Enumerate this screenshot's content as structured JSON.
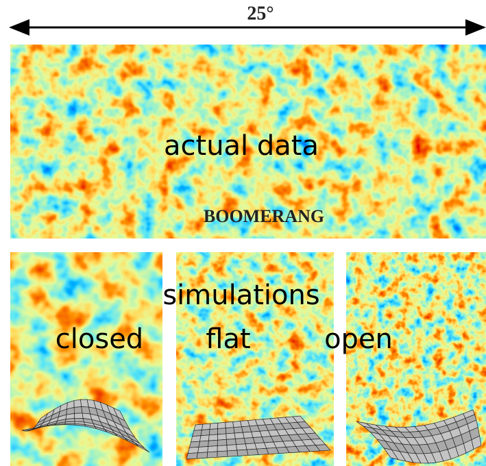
{
  "top_label": "25°",
  "top_panel": {
    "label": "actual data",
    "experiment": "BOOMERANG"
  },
  "bottom_panels": {
    "label": "simulations",
    "panels": [
      "closed",
      "flat",
      "open"
    ]
  }
}
